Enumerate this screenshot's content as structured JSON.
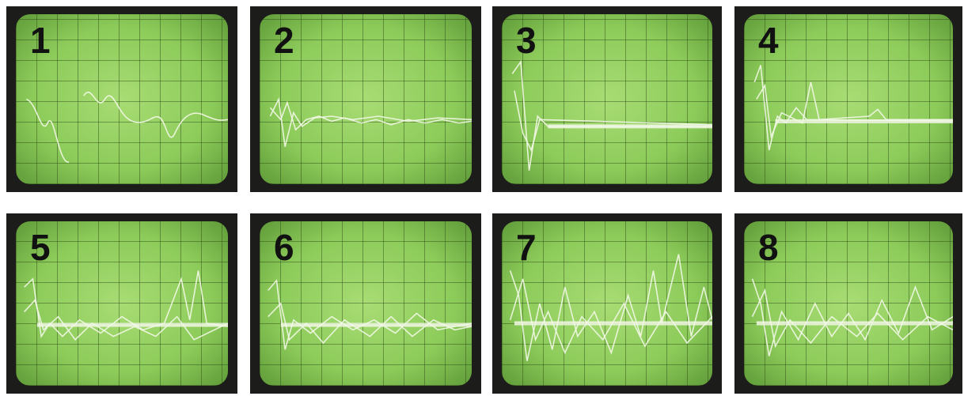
{
  "panels": [
    {
      "label": "1"
    },
    {
      "label": "2"
    },
    {
      "label": "3"
    },
    {
      "label": "4"
    },
    {
      "label": "5"
    },
    {
      "label": "6"
    },
    {
      "label": "7"
    },
    {
      "label": "8"
    }
  ]
}
